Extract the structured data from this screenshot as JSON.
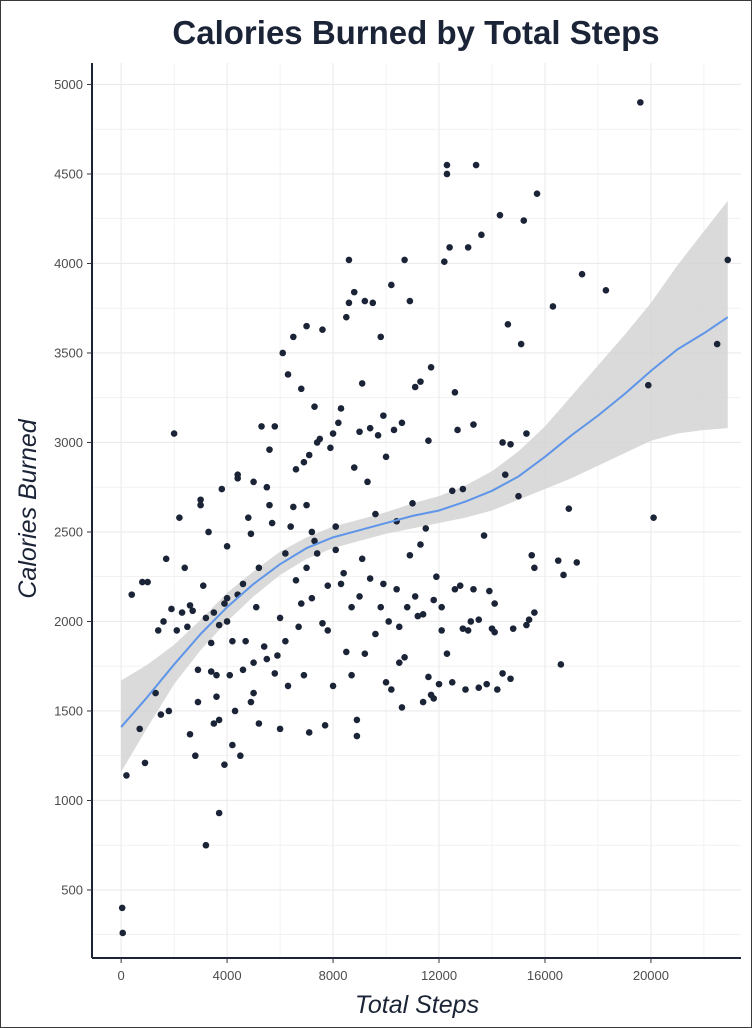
{
  "chart_data": {
    "type": "scatter",
    "title": "Calories Burned by Total Steps",
    "xlabel": "Total Steps",
    "ylabel": "Calories Burned",
    "xlim": [
      -1100,
      23400
    ],
    "ylim": [
      120,
      5120
    ],
    "x_ticks": [
      0,
      4000,
      8000,
      12000,
      16000,
      20000
    ],
    "y_ticks": [
      500,
      1000,
      1500,
      2000,
      2500,
      3000,
      3500,
      4000,
      4500,
      5000
    ],
    "grid": true,
    "colors": {
      "points": "#1b2437",
      "trend_line": "#5f95e8",
      "confidence_band": "#d4d4d4",
      "grid": "#ebebeb"
    },
    "points": [
      [
        40,
        400
      ],
      [
        60,
        260
      ],
      [
        200,
        1140
      ],
      [
        400,
        2150
      ],
      [
        700,
        1400
      ],
      [
        800,
        2220
      ],
      [
        900,
        1210
      ],
      [
        1000,
        2220
      ],
      [
        1300,
        1600
      ],
      [
        1400,
        1950
      ],
      [
        1500,
        1480
      ],
      [
        1600,
        2000
      ],
      [
        1700,
        2350
      ],
      [
        1800,
        1500
      ],
      [
        1900,
        2070
      ],
      [
        2000,
        3050
      ],
      [
        2100,
        1950
      ],
      [
        2200,
        2580
      ],
      [
        2300,
        2050
      ],
      [
        2400,
        2300
      ],
      [
        2500,
        1970
      ],
      [
        2600,
        1370
      ],
      [
        2700,
        2060
      ],
      [
        2800,
        1250
      ],
      [
        2900,
        1550
      ],
      [
        3000,
        2650
      ],
      [
        3000,
        2680
      ],
      [
        3100,
        2200
      ],
      [
        3200,
        750
      ],
      [
        3300,
        2500
      ],
      [
        3400,
        1880
      ],
      [
        3500,
        1430
      ],
      [
        3500,
        2050
      ],
      [
        3600,
        1700
      ],
      [
        3700,
        1450
      ],
      [
        3700,
        930
      ],
      [
        3800,
        2740
      ],
      [
        3900,
        1200
      ],
      [
        4000,
        2000
      ],
      [
        4000,
        2420
      ],
      [
        4100,
        1700
      ],
      [
        4200,
        1310
      ],
      [
        4300,
        1500
      ],
      [
        4400,
        2800
      ],
      [
        4400,
        2820
      ],
      [
        4500,
        1250
      ],
      [
        4600,
        2210
      ],
      [
        4700,
        1890
      ],
      [
        4800,
        2580
      ],
      [
        4900,
        1550
      ],
      [
        5000,
        2780
      ],
      [
        5000,
        1600
      ],
      [
        5200,
        2300
      ],
      [
        5300,
        3090
      ],
      [
        5400,
        1860
      ],
      [
        5500,
        2750
      ],
      [
        5600,
        2960
      ],
      [
        5700,
        2550
      ],
      [
        5800,
        3090
      ],
      [
        5900,
        1810
      ],
      [
        6000,
        1400
      ],
      [
        6100,
        3500
      ],
      [
        6200,
        2380
      ],
      [
        6300,
        3380
      ],
      [
        6400,
        2530
      ],
      [
        6500,
        3590
      ],
      [
        6500,
        2640
      ],
      [
        6600,
        2850
      ],
      [
        6700,
        1970
      ],
      [
        6800,
        3300
      ],
      [
        6900,
        2890
      ],
      [
        7000,
        3650
      ],
      [
        7100,
        2930
      ],
      [
        7100,
        1380
      ],
      [
        7200,
        2500
      ],
      [
        7300,
        3200
      ],
      [
        7400,
        3000
      ],
      [
        7500,
        3020
      ],
      [
        7600,
        3630
      ],
      [
        7700,
        1420
      ],
      [
        7800,
        2200
      ],
      [
        7900,
        2970
      ],
      [
        8000,
        3050
      ],
      [
        8100,
        2400
      ],
      [
        8200,
        3110
      ],
      [
        8300,
        3190
      ],
      [
        8400,
        2270
      ],
      [
        8500,
        3700
      ],
      [
        8600,
        3780
      ],
      [
        8600,
        4020
      ],
      [
        8700,
        1700
      ],
      [
        8800,
        3840
      ],
      [
        8900,
        1450
      ],
      [
        8900,
        1360
      ],
      [
        9000,
        3060
      ],
      [
        9100,
        3330
      ],
      [
        9200,
        3790
      ],
      [
        9300,
        2780
      ],
      [
        9400,
        3080
      ],
      [
        9500,
        3780
      ],
      [
        9600,
        2600
      ],
      [
        9700,
        3040
      ],
      [
        9800,
        3590
      ],
      [
        9900,
        3150
      ],
      [
        10000,
        2920
      ],
      [
        10100,
        2000
      ],
      [
        10200,
        3880
      ],
      [
        10300,
        3070
      ],
      [
        10400,
        2560
      ],
      [
        10500,
        1770
      ],
      [
        10600,
        3110
      ],
      [
        10700,
        4020
      ],
      [
        10800,
        2080
      ],
      [
        10900,
        3790
      ],
      [
        11000,
        2660
      ],
      [
        11100,
        3310
      ],
      [
        11200,
        2030
      ],
      [
        11300,
        3340
      ],
      [
        11400,
        1550
      ],
      [
        11500,
        2520
      ],
      [
        11600,
        3010
      ],
      [
        11700,
        3420
      ],
      [
        11800,
        2120
      ],
      [
        11900,
        2250
      ],
      [
        12000,
        1650
      ],
      [
        12100,
        2080
      ],
      [
        12200,
        4010
      ],
      [
        12300,
        4550
      ],
      [
        12300,
        4500
      ],
      [
        12400,
        4090
      ],
      [
        12500,
        2730
      ],
      [
        12600,
        3280
      ],
      [
        12700,
        3070
      ],
      [
        12800,
        2200
      ],
      [
        12900,
        2740
      ],
      [
        13000,
        1620
      ],
      [
        13100,
        4090
      ],
      [
        13200,
        2000
      ],
      [
        13300,
        3100
      ],
      [
        13400,
        4550
      ],
      [
        13500,
        1630
      ],
      [
        13600,
        4160
      ],
      [
        13700,
        2480
      ],
      [
        13800,
        1650
      ],
      [
        13900,
        2170
      ],
      [
        14000,
        1960
      ],
      [
        14100,
        2100
      ],
      [
        14200,
        1620
      ],
      [
        14300,
        4270
      ],
      [
        14400,
        1710
      ],
      [
        14500,
        2820
      ],
      [
        14600,
        3660
      ],
      [
        14700,
        2990
      ],
      [
        14800,
        1960
      ],
      [
        15000,
        2700
      ],
      [
        15100,
        3550
      ],
      [
        15200,
        4240
      ],
      [
        15300,
        3050
      ],
      [
        15400,
        2010
      ],
      [
        15500,
        2370
      ],
      [
        15600,
        2300
      ],
      [
        15700,
        4390
      ],
      [
        16300,
        3760
      ],
      [
        16500,
        2340
      ],
      [
        16600,
        1760
      ],
      [
        16700,
        2260
      ],
      [
        16900,
        2630
      ],
      [
        17200,
        2330
      ],
      [
        17400,
        3940
      ],
      [
        18300,
        3850
      ],
      [
        19600,
        4900
      ],
      [
        19900,
        3320
      ],
      [
        20100,
        2580
      ],
      [
        22500,
        3550
      ],
      [
        22900,
        4020
      ],
      [
        8300,
        2210
      ],
      [
        9000,
        2140
      ],
      [
        9600,
        1930
      ],
      [
        10000,
        1660
      ],
      [
        10500,
        1970
      ],
      [
        10900,
        2370
      ],
      [
        11300,
        2430
      ],
      [
        11800,
        1570
      ],
      [
        12600,
        2180
      ],
      [
        13100,
        1950
      ],
      [
        6900,
        1700
      ],
      [
        7200,
        2130
      ],
      [
        7600,
        1990
      ],
      [
        8100,
        2530
      ],
      [
        8700,
        2080
      ],
      [
        5100,
        2080
      ],
      [
        5500,
        1790
      ],
      [
        6000,
        2020
      ],
      [
        6300,
        1640
      ],
      [
        4900,
        2490
      ],
      [
        4200,
        1890
      ],
      [
        3600,
        1580
      ],
      [
        3200,
        2020
      ],
      [
        2900,
        1730
      ],
      [
        2600,
        2090
      ],
      [
        4600,
        1730
      ],
      [
        5200,
        1430
      ],
      [
        5800,
        1710
      ],
      [
        6600,
        2230
      ],
      [
        7000,
        2650
      ],
      [
        7400,
        2380
      ],
      [
        7800,
        1950
      ],
      [
        8500,
        1830
      ],
      [
        9100,
        2350
      ],
      [
        9400,
        2240
      ],
      [
        9800,
        2080
      ],
      [
        10200,
        1620
      ],
      [
        10700,
        1800
      ],
      [
        11100,
        2140
      ],
      [
        11600,
        1690
      ],
      [
        12100,
        1950
      ],
      [
        12900,
        1960
      ],
      [
        13500,
        2010
      ],
      [
        14100,
        1940
      ],
      [
        3400,
        1720
      ],
      [
        4400,
        2150
      ],
      [
        5600,
        2650
      ],
      [
        6200,
        1890
      ],
      [
        7000,
        2300
      ],
      [
        8000,
        1640
      ],
      [
        9200,
        1820
      ],
      [
        10400,
        2180
      ],
      [
        11400,
        2040
      ],
      [
        12300,
        1820
      ],
      [
        14400,
        3000
      ],
      [
        4000,
        2130
      ],
      [
        5000,
        1770
      ],
      [
        3900,
        2100
      ],
      [
        3700,
        1980
      ],
      [
        6800,
        2100
      ],
      [
        7300,
        2450
      ],
      [
        8800,
        2860
      ],
      [
        9900,
        2210
      ],
      [
        10600,
        1520
      ],
      [
        11700,
        1590
      ],
      [
        12500,
        1660
      ],
      [
        13300,
        2180
      ],
      [
        14700,
        1680
      ],
      [
        15300,
        1980
      ],
      [
        15600,
        2050
      ]
    ],
    "trend_line": [
      [
        0,
        1410
      ],
      [
        1000,
        1580
      ],
      [
        2000,
        1760
      ],
      [
        3000,
        1930
      ],
      [
        4000,
        2080
      ],
      [
        5000,
        2210
      ],
      [
        6000,
        2320
      ],
      [
        7000,
        2410
      ],
      [
        8000,
        2470
      ],
      [
        9000,
        2510
      ],
      [
        10000,
        2550
      ],
      [
        11000,
        2590
      ],
      [
        12000,
        2620
      ],
      [
        13000,
        2670
      ],
      [
        14000,
        2730
      ],
      [
        15000,
        2810
      ],
      [
        16000,
        2920
      ],
      [
        17000,
        3040
      ],
      [
        18000,
        3150
      ],
      [
        19000,
        3270
      ],
      [
        20000,
        3400
      ],
      [
        21000,
        3520
      ],
      [
        22000,
        3610
      ],
      [
        22900,
        3700
      ]
    ],
    "confidence_band": [
      [
        0,
        1160,
        1670
      ],
      [
        1000,
        1410,
        1760
      ],
      [
        2000,
        1650,
        1870
      ],
      [
        3000,
        1840,
        2010
      ],
      [
        4000,
        2000,
        2160
      ],
      [
        5000,
        2140,
        2280
      ],
      [
        6000,
        2260,
        2390
      ],
      [
        7000,
        2350,
        2470
      ],
      [
        8000,
        2410,
        2530
      ],
      [
        9000,
        2450,
        2570
      ],
      [
        10000,
        2490,
        2610
      ],
      [
        11000,
        2520,
        2660
      ],
      [
        12000,
        2550,
        2700
      ],
      [
        13000,
        2580,
        2760
      ],
      [
        14000,
        2620,
        2840
      ],
      [
        15000,
        2680,
        2950
      ],
      [
        16000,
        2740,
        3090
      ],
      [
        17000,
        2800,
        3260
      ],
      [
        18000,
        2870,
        3430
      ],
      [
        19000,
        2940,
        3600
      ],
      [
        20000,
        3010,
        3780
      ],
      [
        21000,
        3050,
        3990
      ],
      [
        22000,
        3070,
        4180
      ],
      [
        22900,
        3080,
        4350
      ]
    ]
  }
}
